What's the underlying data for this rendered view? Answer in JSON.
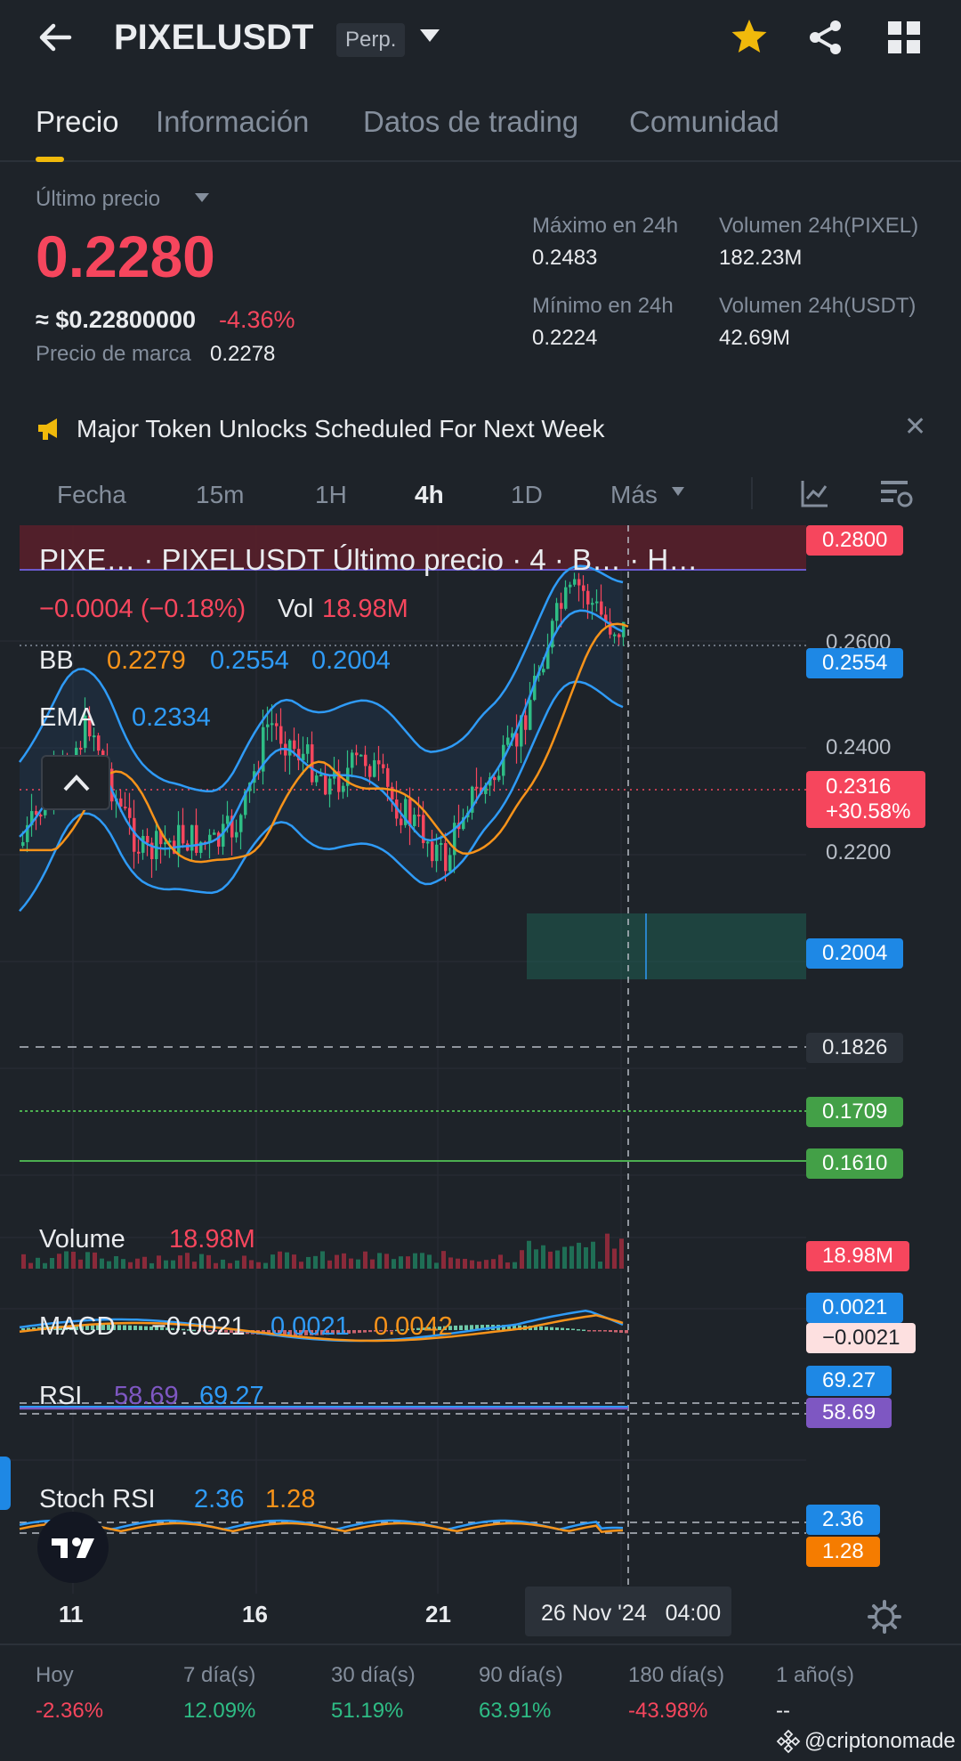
{
  "header": {
    "title": "PIXELUSDT",
    "badge": "Perp."
  },
  "tabs": [
    "Precio",
    "Información",
    "Datos de trading",
    "Comunidad"
  ],
  "price": {
    "label": "Último precio",
    "last": "0.2280",
    "usd": "≈ $0.22800000",
    "change": "-4.36%",
    "mark_label": "Precio de marca",
    "mark_value": "0.2278"
  },
  "stats": {
    "high_label": "Máximo en 24h",
    "high_value": "0.2483",
    "low_label": "Mínimo en 24h",
    "low_value": "0.2224",
    "vol_base_label": "Volumen 24h(PIXEL)",
    "vol_base_value": "182.23M",
    "vol_quote_label": "Volumen 24h(USDT)",
    "vol_quote_value": "42.69M"
  },
  "banner": {
    "text": "Major Token Unlocks Scheduled For Next Week"
  },
  "intervals": [
    "Fecha",
    "15m",
    "1H",
    "4h",
    "1D",
    "Más"
  ],
  "chart": {
    "legend_title": "PIXE…   · PIXELUSDT Último precio · 4 · B…   · H…",
    "legend_change": "−0.0004 (−0.18%)",
    "vol_label": "Vol",
    "vol_value": "18.98M",
    "bb_label": "BB",
    "bb_mid": "0.2279",
    "bb_up": "0.2554",
    "bb_low": "0.2004",
    "ema_label": "EMA",
    "ema_value": "0.2334",
    "axis_labels": [
      "0.2600",
      "0.2400",
      "0.2200"
    ],
    "tags": {
      "t2800": "0.2800",
      "t2554": "0.2554",
      "t2316a": "0.2316",
      "t2316b": "+30.58%",
      "t2004": "0.2004",
      "t1826": "0.1826",
      "t1709": "0.1709",
      "t1610": "0.1610",
      "vol_tag": "18.98M",
      "macd_a": "0.0021",
      "macd_b": "−0.0021",
      "rsi_a": "69.27",
      "rsi_b": "58.69",
      "stoch_a": "2.36",
      "stoch_b": "1.28"
    },
    "volume_label": "Volume",
    "volume_value": "18.98M",
    "macd_label": "MACD",
    "macd_v1": "−0.0021",
    "macd_v2": "0.0021",
    "macd_v3": "0.0042",
    "rsi_label": "RSI",
    "rsi_v1": "58.69",
    "rsi_v2": "69.27",
    "stoch_label": "Stoch RSI",
    "stoch_v1": "2.36",
    "stoch_v2": "1.28",
    "x_labels": [
      "11",
      "16",
      "21"
    ],
    "crosshair_date": "26 Nov '24   04:00"
  },
  "performance": {
    "labels": [
      "Hoy",
      "7 día(s)",
      "30 día(s)",
      "90 día(s)",
      "180 día(s)",
      "1 año(s)"
    ],
    "values": [
      "-2.36%",
      "12.09%",
      "51.19%",
      "63.91%",
      "-43.98%",
      "--"
    ],
    "colors": [
      "#f6465d",
      "#2ebd85",
      "#2ebd85",
      "#2ebd85",
      "#f6465d",
      "#eaecef"
    ]
  },
  "watermark": "@criptonomade",
  "colors": {
    "accent": "#f0b90b",
    "up": "#2ebd85",
    "down": "#f6465d",
    "bb": "#2f9bf7",
    "ema": "#f7931a"
  }
}
